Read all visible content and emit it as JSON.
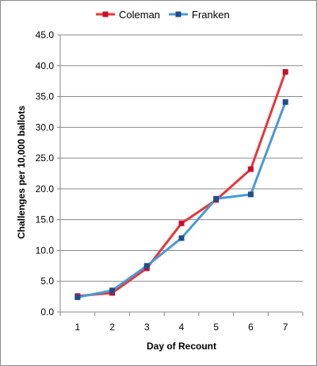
{
  "chart_data": {
    "type": "line",
    "title": "",
    "xlabel": "Day of Recount",
    "ylabel": "Challenges per 10,000 ballots",
    "x": [
      1,
      2,
      3,
      4,
      5,
      6,
      7
    ],
    "x_tick_labels": [
      "1",
      "2",
      "3",
      "4",
      "5",
      "6",
      "7"
    ],
    "y_tick_labels": [
      "0.0",
      "5.0",
      "10.0",
      "15.0",
      "20.0",
      "25.0",
      "30.0",
      "35.0",
      "40.0",
      "45.0"
    ],
    "ylim": [
      0,
      45
    ],
    "y_major_step": 5,
    "grid": "horizontal",
    "legend_position": "top-center",
    "series": [
      {
        "name": "Coleman",
        "color": "#e8363a",
        "marker_color": "#c8102e",
        "values": [
          2.6,
          3.1,
          7.1,
          14.4,
          18.2,
          23.2,
          39.0
        ]
      },
      {
        "name": "Franken",
        "color": "#4a9ad4",
        "marker_color": "#1f4e8c",
        "values": [
          2.4,
          3.5,
          7.5,
          12.0,
          18.4,
          19.1,
          34.1
        ]
      }
    ]
  }
}
